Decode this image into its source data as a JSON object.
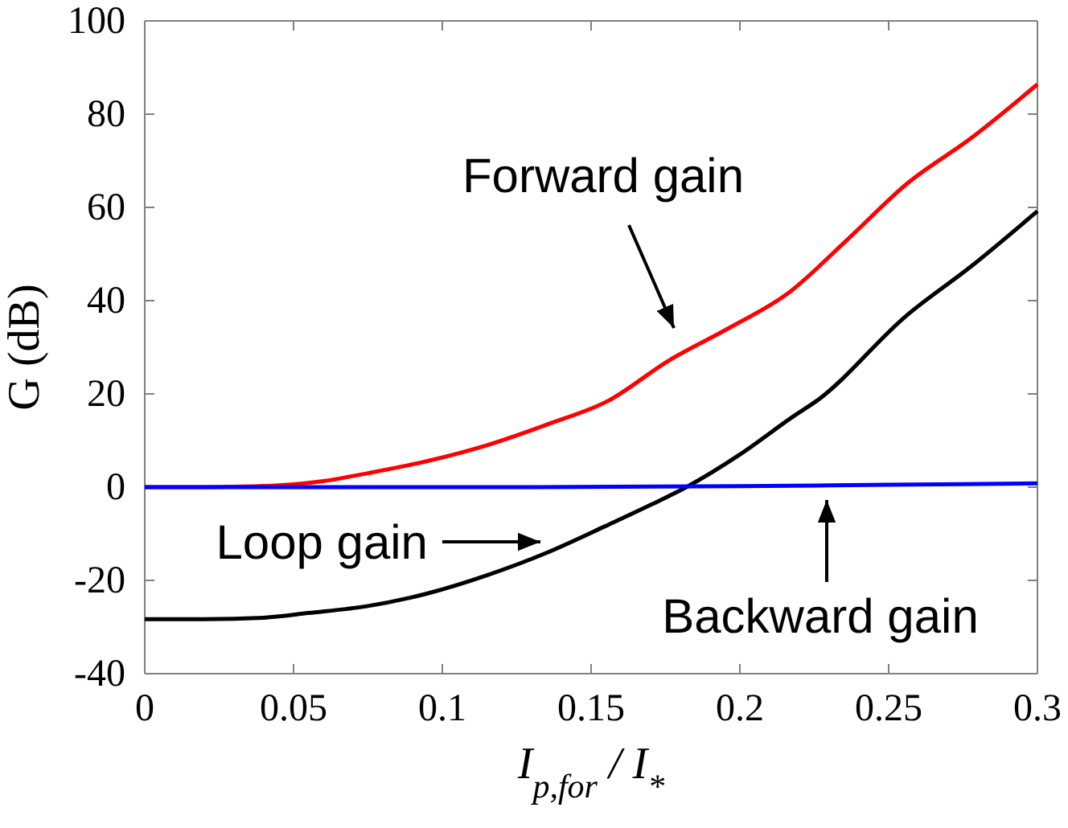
{
  "chart_data": {
    "type": "line",
    "xlabel": "I$_{p,for}$ / I$_{*}$",
    "ylabel": "G (dB)",
    "xlim": [
      0,
      0.3
    ],
    "ylim": [
      -40,
      100
    ],
    "xticks": [
      0,
      0.05,
      0.1,
      0.15,
      0.2,
      0.25,
      0.3
    ],
    "yticks": [
      -40,
      -20,
      0,
      20,
      40,
      60,
      80,
      100
    ],
    "grid": false,
    "series": [
      {
        "color": "#ff0000",
        "x": [
          0,
          0.02,
          0.03,
          0.045,
          0.06,
          0.075,
          0.095,
          0.115,
          0.135,
          0.156,
          0.176,
          0.196,
          0.216,
          0.236,
          0.256,
          0.278,
          0.3
        ],
        "values": [
          0,
          0,
          0.1,
          0.4,
          1.3,
          3.0,
          5.6,
          9.0,
          13.4,
          18.6,
          27.1,
          34.0,
          41.5,
          53,
          65,
          75,
          86.4
        ]
      },
      {
        "color": "#000000",
        "x": [
          0,
          0.02,
          0.04,
          0.055,
          0.075,
          0.095,
          0.115,
          0.135,
          0.155,
          0.17,
          0.182,
          0.2,
          0.218,
          0.226,
          0.256,
          0.278,
          0.3
        ],
        "values": [
          -28.3,
          -28.3,
          -28,
          -27,
          -25.5,
          -22.8,
          -18.9,
          -14.1,
          -8.3,
          -3.8,
          0,
          7,
          15.2,
          18.6,
          36.8,
          47.5,
          59.2
        ]
      },
      {
        "color": "#0000ff",
        "x": [
          0,
          0.1,
          0.2,
          0.25,
          0.3
        ],
        "values": [
          0,
          0,
          0.2,
          0.5,
          0.8
        ]
      }
    ],
    "annotations": [
      "Forward gain",
      "Loop gain",
      "Backward gain"
    ]
  }
}
